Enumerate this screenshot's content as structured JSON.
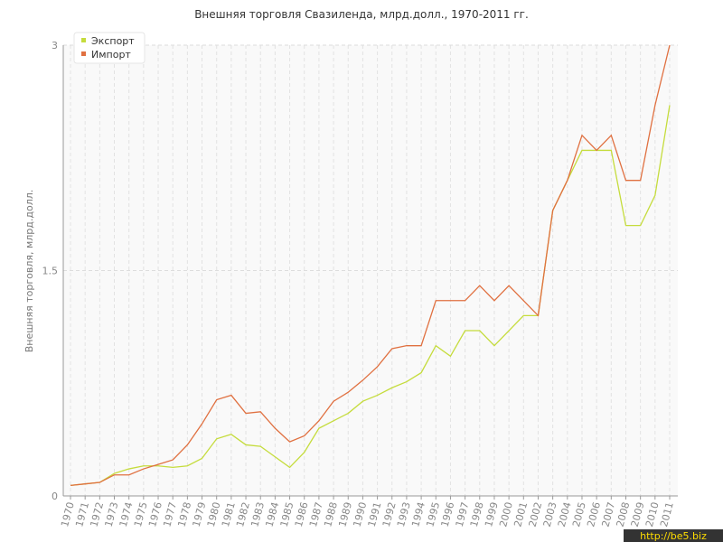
{
  "chart_data": {
    "type": "line",
    "title": "Внешняя торговля Свазиленда, млрд.долл., 1970-2011 гг.",
    "y_label": "Внешняя торговля, млрд.долл.",
    "categories": [
      "1970",
      "1971",
      "1972",
      "1973",
      "1974",
      "1975",
      "1976",
      "1977",
      "1978",
      "1979",
      "1980",
      "1981",
      "1982",
      "1983",
      "1984",
      "1985",
      "1986",
      "1987",
      "1988",
      "1989",
      "1990",
      "1991",
      "1992",
      "1993",
      "1994",
      "1995",
      "1996",
      "1997",
      "1998",
      "1999",
      "2000",
      "2001",
      "2002",
      "2003",
      "2004",
      "2005",
      "2006",
      "2007",
      "2008",
      "2009",
      "2010",
      "2011"
    ],
    "series": [
      {
        "name": "Экспорт",
        "color": "#c5dc3c",
        "values": [
          0.07,
          0.08,
          0.09,
          0.15,
          0.18,
          0.2,
          0.2,
          0.19,
          0.2,
          0.25,
          0.38,
          0.41,
          0.34,
          0.33,
          0.26,
          0.19,
          0.29,
          0.45,
          0.5,
          0.55,
          0.63,
          0.67,
          0.72,
          0.76,
          0.82,
          1.0,
          0.93,
          1.1,
          1.1,
          1.0,
          1.1,
          1.2,
          1.2,
          1.9,
          2.1,
          2.3,
          2.3,
          2.3,
          1.8,
          1.8,
          2.0,
          2.6
        ]
      },
      {
        "name": "Импорт",
        "color": "#e07040",
        "values": [
          0.07,
          0.08,
          0.09,
          0.14,
          0.14,
          0.18,
          0.21,
          0.24,
          0.34,
          0.48,
          0.64,
          0.67,
          0.55,
          0.56,
          0.45,
          0.36,
          0.4,
          0.5,
          0.63,
          0.69,
          0.77,
          0.86,
          0.98,
          1.0,
          1.0,
          1.3,
          1.3,
          1.3,
          1.4,
          1.3,
          1.4,
          1.3,
          1.2,
          1.9,
          2.1,
          2.4,
          2.3,
          2.4,
          2.1,
          2.1,
          2.6,
          3.0
        ]
      }
    ],
    "ylim": [
      0,
      3
    ],
    "yticks": [
      0,
      1.5,
      3
    ],
    "grid": true,
    "legend": "top-left",
    "watermark": "http://be5.biz"
  }
}
